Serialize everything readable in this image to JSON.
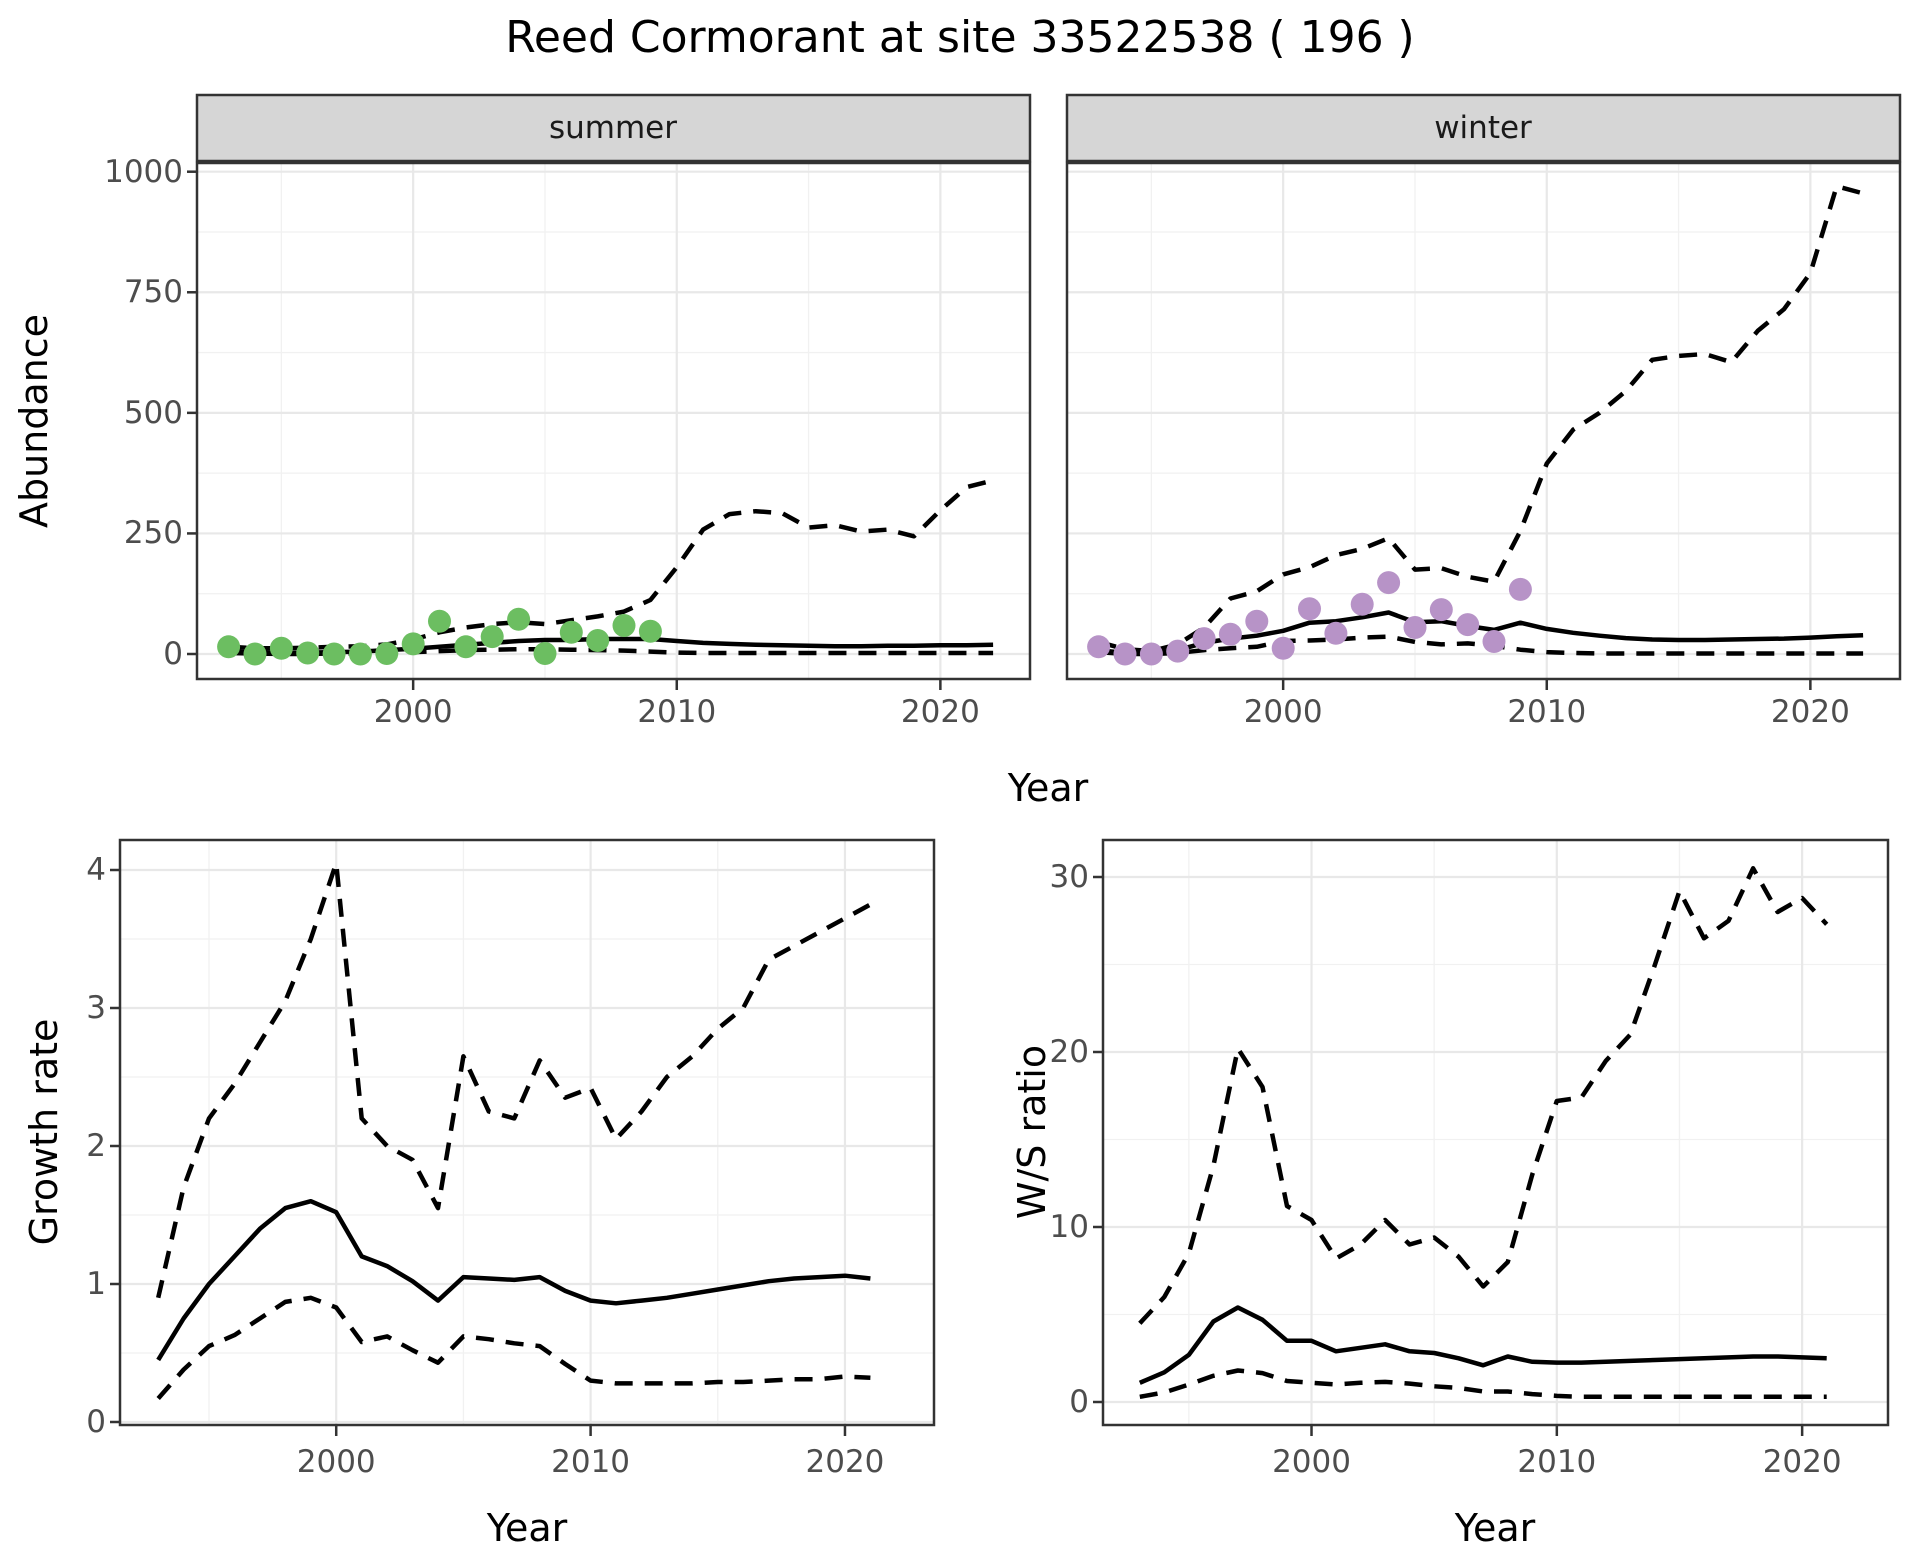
{
  "title": "Reed Cormorant at site 33522538 ( 196 )",
  "facets": {
    "summer_label": "summer",
    "winter_label": "winter"
  },
  "axis_titles": {
    "abundance": "Abundance",
    "year_top": "Year",
    "growth": "Growth rate",
    "ws": "W/S ratio",
    "year_growth": "Year",
    "year_ws": "Year"
  },
  "colors": {
    "summer_points": "#6CBE61",
    "winter_points": "#B793C7",
    "line": "#000000",
    "grid_major": "#E8E8E8",
    "grid_minor": "#F1F1F1",
    "panel_border": "#333333",
    "strip_fill": "#D6D6D6",
    "strip_border": "#333333",
    "tick": "#333333",
    "axis_text": "#4D4D4D"
  },
  "chart_data": [
    {
      "id": "abundance_summer",
      "type": "line",
      "facet_label": "summer",
      "ylabel": "Abundance",
      "xlabel": "Year",
      "xlim": [
        1991.8,
        2023.4
      ],
      "ylim": [
        0,
        1000
      ],
      "xticks": [
        2000,
        2010,
        2020
      ],
      "xminor": [
        1995,
        2005,
        2015
      ],
      "yticks": [
        0,
        250,
        500,
        750,
        1000
      ],
      "yminor": [
        125,
        375,
        625,
        875
      ],
      "years": [
        1993,
        1994,
        1995,
        1996,
        1997,
        1998,
        1999,
        2000,
        2001,
        2002,
        2003,
        2004,
        2005,
        2006,
        2007,
        2008,
        2009,
        2010,
        2011,
        2012,
        2013,
        2014,
        2015,
        2016,
        2017,
        2018,
        2019,
        2020,
        2021,
        2022
      ],
      "series": [
        {
          "name": "upper_ci",
          "style": "dashed",
          "values": [
            15,
            12,
            12,
            13,
            15,
            16,
            20,
            30,
            45,
            55,
            62,
            66,
            62,
            70,
            78,
            88,
            112,
            180,
            258,
            290,
            296,
            292,
            262,
            267,
            254,
            258,
            244,
            298,
            346,
            360
          ]
        },
        {
          "name": "mean",
          "style": "solid",
          "values": [
            6,
            3,
            2,
            3,
            4,
            5,
            8,
            11,
            15,
            19,
            23,
            27,
            29,
            29,
            31,
            31,
            31,
            27,
            23,
            21,
            19,
            18,
            17,
            16,
            16,
            17,
            17,
            18,
            18,
            19
          ]
        },
        {
          "name": "lower_ci",
          "style": "dashed",
          "values": [
            2,
            1,
            0,
            0,
            1,
            1,
            2,
            4,
            6,
            8,
            9,
            10,
            10,
            9,
            8,
            7,
            5,
            3,
            2,
            2,
            2,
            2,
            2,
            2,
            2,
            2,
            2,
            2,
            2,
            2
          ]
        }
      ],
      "points": {
        "name": "summer_observed_counts",
        "color_key": "summer_points",
        "years": [
          1993,
          1994,
          1995,
          1996,
          1997,
          1998,
          1999,
          2000,
          2001,
          2002,
          2003,
          2004,
          2005,
          2006,
          2007,
          2008,
          2009
        ],
        "values": [
          15,
          0,
          12,
          2,
          0,
          0,
          1,
          21,
          68,
          15,
          36,
          72,
          1,
          45,
          28,
          59,
          47
        ]
      }
    },
    {
      "id": "abundance_winter",
      "type": "line",
      "facet_label": "winter",
      "ylabel": "Abundance",
      "xlabel": "Year",
      "xlim": [
        1991.8,
        2023.4
      ],
      "ylim": [
        0,
        1000
      ],
      "xticks": [
        2000,
        2010,
        2020
      ],
      "xminor": [
        1995,
        2005,
        2015
      ],
      "yticks": [
        0,
        250,
        500,
        750,
        1000
      ],
      "yminor": [
        125,
        375,
        625,
        875
      ],
      "years": [
        1993,
        1994,
        1995,
        1996,
        1997,
        1998,
        1999,
        2000,
        2001,
        2002,
        2003,
        2004,
        2005,
        2006,
        2007,
        2008,
        2009,
        2010,
        2011,
        2012,
        2013,
        2014,
        2015,
        2016,
        2017,
        2018,
        2019,
        2020,
        2021,
        2022
      ],
      "series": [
        {
          "name": "upper_ci",
          "style": "dashed",
          "values": [
            25,
            10,
            6,
            20,
            55,
            115,
            130,
            165,
            180,
            205,
            218,
            240,
            175,
            178,
            160,
            150,
            255,
            395,
            465,
            500,
            545,
            610,
            618,
            622,
            605,
            670,
            715,
            790,
            970,
            955
          ]
        },
        {
          "name": "mean",
          "style": "solid",
          "values": [
            8,
            2,
            0,
            8,
            23,
            32,
            38,
            48,
            65,
            68,
            76,
            86,
            66,
            68,
            58,
            50,
            65,
            52,
            44,
            38,
            33,
            30,
            29,
            29,
            30,
            31,
            32,
            34,
            37,
            39
          ]
        },
        {
          "name": "lower_ci",
          "style": "dashed",
          "values": [
            4,
            0,
            0,
            2,
            8,
            12,
            15,
            27,
            28,
            30,
            34,
            36,
            25,
            20,
            22,
            17,
            9,
            4,
            2,
            1,
            1,
            1,
            1,
            1,
            1,
            1,
            1,
            1,
            1,
            1
          ]
        }
      ],
      "points": {
        "name": "winter_observed_counts",
        "color_key": "winter_points",
        "years": [
          1993,
          1994,
          1995,
          1996,
          1997,
          1998,
          1999,
          2000,
          2001,
          2002,
          2003,
          2004,
          2005,
          2006,
          2007,
          2008,
          2009
        ],
        "values": [
          15,
          0,
          0,
          6,
          32,
          41,
          68,
          12,
          94,
          43,
          103,
          148,
          55,
          92,
          61,
          26,
          134
        ]
      }
    },
    {
      "id": "growth_rate",
      "type": "line",
      "ylabel": "Growth rate",
      "xlabel": "Year",
      "xlim": [
        1991.5,
        2023.5
      ],
      "ylim": [
        0,
        4
      ],
      "xticks": [
        2000,
        2010,
        2020
      ],
      "xminor": [
        1995,
        2005,
        2015
      ],
      "yticks": [
        0,
        1,
        2,
        3,
        4
      ],
      "yminor": [
        0.5,
        1.5,
        2.5,
        3.5
      ],
      "years": [
        1993,
        1994,
        1995,
        1996,
        1997,
        1998,
        1999,
        2000,
        2001,
        2002,
        2003,
        2004,
        2005,
        2006,
        2007,
        2008,
        2009,
        2010,
        2011,
        2012,
        2013,
        2014,
        2015,
        2016,
        2017,
        2018,
        2019,
        2020,
        2021
      ],
      "series": [
        {
          "name": "upper_ci",
          "style": "dashed",
          "values": [
            0.9,
            1.7,
            2.2,
            2.45,
            2.75,
            3.05,
            3.5,
            4.05,
            2.2,
            2.0,
            1.9,
            1.55,
            2.65,
            2.25,
            2.2,
            2.62,
            2.35,
            2.42,
            2.05,
            2.25,
            2.5,
            2.65,
            2.85,
            3.0,
            3.35,
            3.45,
            3.55,
            3.65,
            3.75
          ]
        },
        {
          "name": "mean",
          "style": "solid",
          "values": [
            0.45,
            0.75,
            1.0,
            1.2,
            1.4,
            1.55,
            1.6,
            1.52,
            1.2,
            1.13,
            1.02,
            0.88,
            1.05,
            1.04,
            1.03,
            1.05,
            0.95,
            0.88,
            0.86,
            0.88,
            0.9,
            0.93,
            0.96,
            0.99,
            1.02,
            1.04,
            1.05,
            1.06,
            1.04
          ]
        },
        {
          "name": "lower_ci",
          "style": "dashed",
          "values": [
            0.17,
            0.38,
            0.55,
            0.63,
            0.75,
            0.87,
            0.9,
            0.83,
            0.58,
            0.62,
            0.52,
            0.43,
            0.62,
            0.6,
            0.57,
            0.55,
            0.42,
            0.3,
            0.28,
            0.28,
            0.28,
            0.28,
            0.29,
            0.29,
            0.3,
            0.31,
            0.31,
            0.33,
            0.32
          ]
        }
      ]
    },
    {
      "id": "ws_ratio",
      "type": "line",
      "ylabel": "W/S ratio",
      "xlabel": "Year",
      "xlim": [
        1991.5,
        2023.5
      ],
      "ylim": [
        0,
        30
      ],
      "xticks": [
        2000,
        2010,
        2020
      ],
      "xminor": [
        1995,
        2005,
        2015
      ],
      "yticks": [
        0,
        10,
        20,
        30
      ],
      "yminor": [
        5,
        15,
        25
      ],
      "years": [
        1993,
        1994,
        1995,
        1996,
        1997,
        1998,
        1999,
        2000,
        2001,
        2002,
        2003,
        2004,
        2005,
        2006,
        2007,
        2008,
        2009,
        2010,
        2011,
        2012,
        2013,
        2014,
        2015,
        2016,
        2017,
        2018,
        2019,
        2020,
        2021
      ],
      "series": [
        {
          "name": "upper_ci",
          "style": "dashed",
          "values": [
            4.5,
            6.0,
            8.5,
            13.5,
            20.2,
            18.0,
            11.2,
            10.4,
            8.2,
            9.0,
            10.4,
            9.0,
            9.4,
            8.3,
            6.6,
            8.0,
            13.0,
            17.2,
            17.4,
            19.5,
            21.0,
            25.0,
            29.2,
            26.5,
            27.5,
            30.5,
            28.0,
            28.8,
            27.3
          ]
        },
        {
          "name": "mean",
          "style": "solid",
          "values": [
            1.1,
            1.7,
            2.7,
            4.6,
            5.4,
            4.7,
            3.5,
            3.5,
            2.9,
            3.1,
            3.3,
            2.9,
            2.8,
            2.5,
            2.1,
            2.6,
            2.3,
            2.25,
            2.25,
            2.3,
            2.35,
            2.4,
            2.45,
            2.5,
            2.55,
            2.6,
            2.6,
            2.55,
            2.5
          ]
        },
        {
          "name": "lower_ci",
          "style": "dashed",
          "values": [
            0.3,
            0.55,
            1.0,
            1.5,
            1.8,
            1.65,
            1.2,
            1.1,
            1.0,
            1.1,
            1.15,
            1.05,
            0.9,
            0.8,
            0.6,
            0.6,
            0.45,
            0.35,
            0.3,
            0.3,
            0.3,
            0.3,
            0.3,
            0.3,
            0.3,
            0.3,
            0.3,
            0.3,
            0.3
          ]
        }
      ]
    }
  ]
}
